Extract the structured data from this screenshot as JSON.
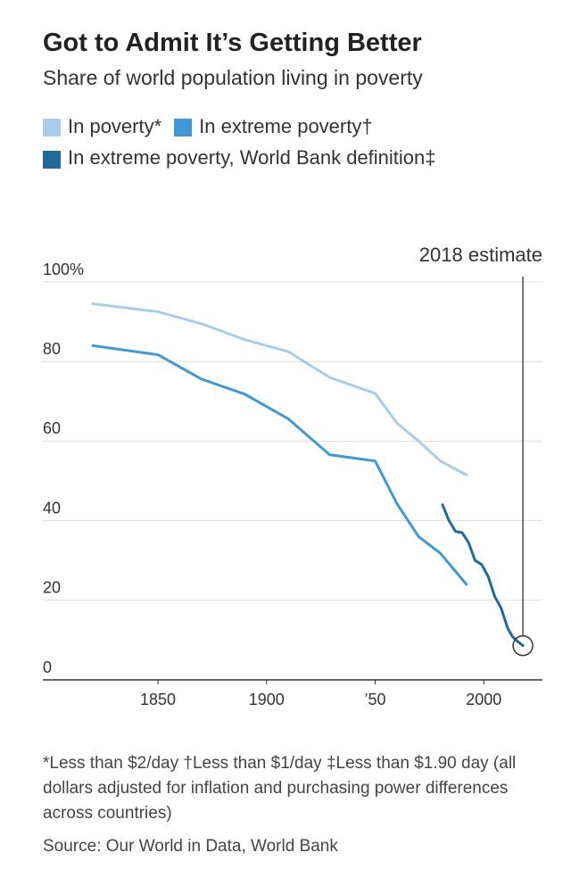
{
  "chart_data": {
    "type": "line",
    "title": "Got to Admit It’s Getting Better",
    "subtitle": "Share of world population living in poverty",
    "annotation": "2018 estimate",
    "footnote": "*Less than $2/day †Less than $1/day ‡Less than $1.90 day (all dollars adjusted for inflation and purchasing power differences across countries)",
    "source": "Source: Our World in Data, World Bank",
    "xlim": [
      1797,
      2027
    ],
    "xticks": [
      1850,
      1900,
      {
        "value": 1950,
        "label": "’50"
      },
      2000
    ],
    "ylim": [
      0,
      100
    ],
    "yticks": [
      0,
      20,
      40,
      60,
      80,
      {
        "value": 100,
        "label": "100%"
      }
    ],
    "grid": true,
    "series": [
      {
        "name": "In poverty*",
        "color": "#a9cde8",
        "x": [
          1820,
          1850,
          1870,
          1890,
          1910,
          1929,
          1950,
          1960,
          1970,
          1980,
          1992
        ],
        "values": [
          94.5,
          92.5,
          89.5,
          85.5,
          82.5,
          76,
          72,
          64.5,
          60,
          55,
          51.5
        ]
      },
      {
        "name": "In extreme poverty†",
        "color": "#4199d4",
        "x": [
          1820,
          1850,
          1870,
          1890,
          1910,
          1929,
          1950,
          1960,
          1970,
          1980,
          1992
        ],
        "values": [
          84,
          81.7,
          75.6,
          71.8,
          65.6,
          56.6,
          55,
          44.3,
          36,
          31.8,
          24
        ]
      },
      {
        "name": "In extreme poverty, World Bank definition‡",
        "color": "#236a9c",
        "x": [
          1981,
          1984,
          1987,
          1990,
          1993,
          1996,
          1999,
          2002,
          2005,
          2008,
          2011,
          2013,
          2015,
          2018
        ],
        "values": [
          44,
          40,
          37.3,
          37,
          34.5,
          30,
          29,
          26,
          21,
          18,
          13,
          11,
          9.9,
          8.6
        ]
      }
    ]
  }
}
